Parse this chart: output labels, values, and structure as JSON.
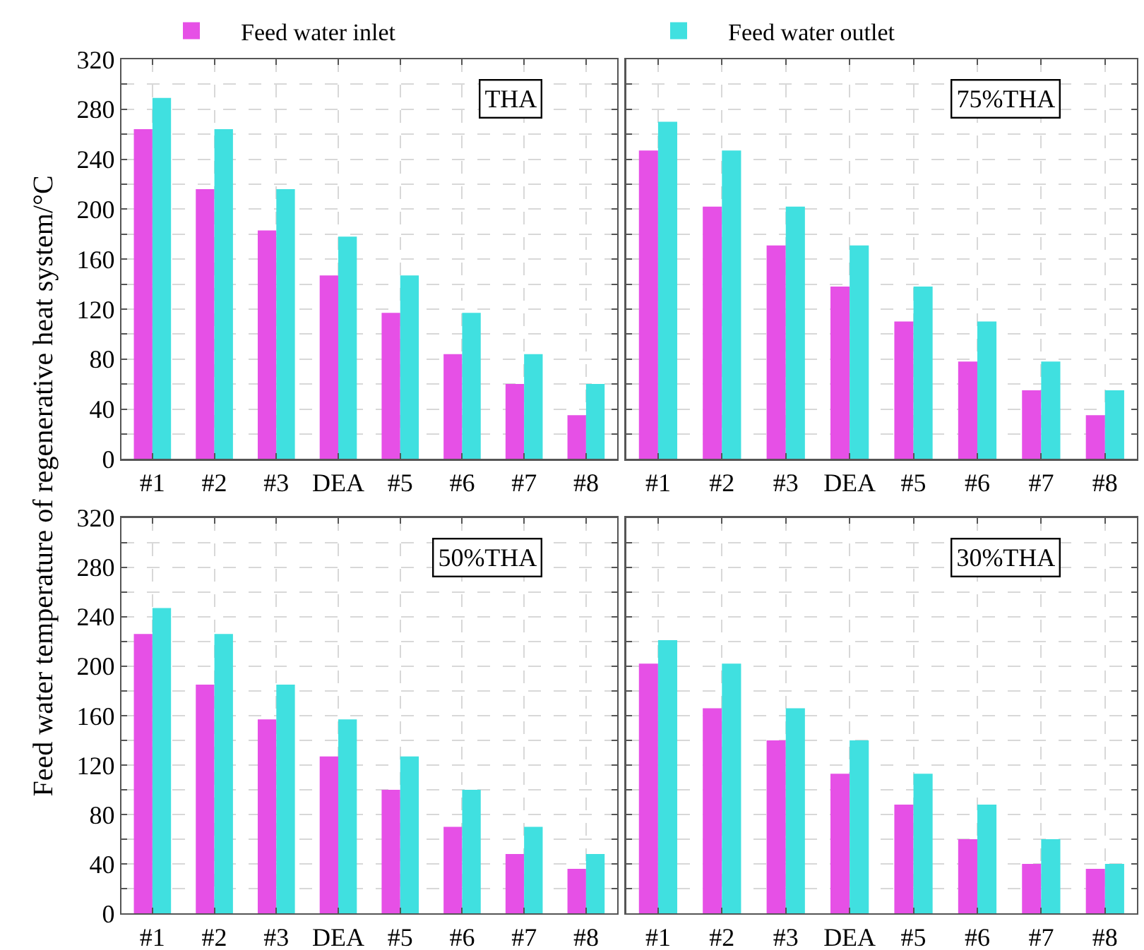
{
  "chart_data": [
    {
      "type": "bar",
      "title": "THA",
      "ylabel": "Feed water temperature of regenerative heat system/°C",
      "categories": [
        "#1",
        "#2",
        "#3",
        "DEA",
        "#5",
        "#6",
        "#7",
        "#8"
      ],
      "series": [
        {
          "name": "Feed water inlet",
          "color": "#e650e6",
          "values": [
            264,
            216,
            183,
            147,
            117,
            84,
            60,
            35
          ]
        },
        {
          "name": "Feed water outlet",
          "color": "#40e0e0",
          "values": [
            289,
            264,
            216,
            178,
            147,
            117,
            84,
            60
          ]
        }
      ],
      "ylim": [
        0,
        320
      ],
      "yticks": [
        0,
        {
          "value": 20,
          "label": null
        },
        40,
        {
          "value": 60,
          "label": null
        },
        80,
        {
          "value": 100,
          "label": null
        },
        120,
        {
          "value": 140,
          "label": null
        },
        160,
        {
          "value": 180,
          "label": null
        },
        200,
        {
          "value": 220,
          "label": null
        },
        240,
        {
          "value": 260,
          "label": null
        },
        280,
        {
          "value": 300,
          "label": null
        },
        320
      ],
      "grid": true,
      "legend": "top"
    },
    {
      "type": "bar",
      "title": "75%THA",
      "categories": [
        "#1",
        "#2",
        "#3",
        "DEA",
        "#5",
        "#6",
        "#7",
        "#8"
      ],
      "series": [
        {
          "color": "#e650e6",
          "values": [
            247,
            202,
            171,
            138,
            110,
            78,
            55,
            35
          ]
        },
        {
          "color": "#40e0e0",
          "values": [
            270,
            247,
            202,
            171,
            138,
            110,
            78,
            55
          ]
        }
      ],
      "ylim": [
        0,
        320
      ],
      "yticks": [
        0,
        {
          "value": 20,
          "label": null
        },
        40,
        {
          "value": 60,
          "label": null
        },
        80,
        {
          "value": 100,
          "label": null
        },
        120,
        {
          "value": 140,
          "label": null
        },
        160,
        {
          "value": 180,
          "label": null
        },
        200,
        {
          "value": 220,
          "label": null
        },
        240,
        {
          "value": 260,
          "label": null
        },
        280,
        {
          "value": 300,
          "label": null
        },
        320
      ],
      "grid": true,
      "tick_labels": "x"
    },
    {
      "type": "bar",
      "title": "50%THA",
      "categories": [
        "#1",
        "#2",
        "#3",
        "DEA",
        "#5",
        "#6",
        "#7",
        "#8"
      ],
      "series": [
        {
          "color": "#e650e6",
          "values": [
            226,
            185,
            157,
            127,
            100,
            70,
            48,
            36
          ]
        },
        {
          "color": "#40e0e0",
          "values": [
            247,
            226,
            185,
            157,
            127,
            100,
            70,
            48
          ]
        }
      ],
      "ylim": [
        0,
        320
      ],
      "yticks": [
        0,
        {
          "value": 20,
          "label": null
        },
        40,
        {
          "value": 60,
          "label": null
        },
        80,
        {
          "value": 100,
          "label": null
        },
        120,
        {
          "value": 140,
          "label": null
        },
        160,
        {
          "value": 180,
          "label": null
        },
        200,
        {
          "value": 220,
          "label": null
        },
        240,
        {
          "value": 260,
          "label": null
        },
        280,
        {
          "value": 300,
          "label": null
        },
        320
      ],
      "grid": true
    },
    {
      "type": "bar",
      "title": "30%THA",
      "categories": [
        "#1",
        "#2",
        "#3",
        "DEA",
        "#5",
        "#6",
        "#7",
        "#8"
      ],
      "series": [
        {
          "color": "#e650e6",
          "values": [
            202,
            166,
            140,
            113,
            88,
            60,
            40,
            36
          ]
        },
        {
          "color": "#40e0e0",
          "values": [
            221,
            202,
            166,
            140,
            113,
            88,
            60,
            40
          ]
        }
      ],
      "ylim": [
        0,
        320
      ],
      "yticks": [
        0,
        {
          "value": 20,
          "label": null
        },
        40,
        {
          "value": 60,
          "label": null
        },
        80,
        {
          "value": 100,
          "label": null
        },
        120,
        {
          "value": 140,
          "label": null
        },
        160,
        {
          "value": 180,
          "label": null
        },
        200,
        {
          "value": 220,
          "label": null
        },
        240,
        {
          "value": 260,
          "label": null
        },
        280,
        {
          "value": 300,
          "label": null
        },
        320
      ],
      "grid": true,
      "tick_labels": "x"
    }
  ]
}
